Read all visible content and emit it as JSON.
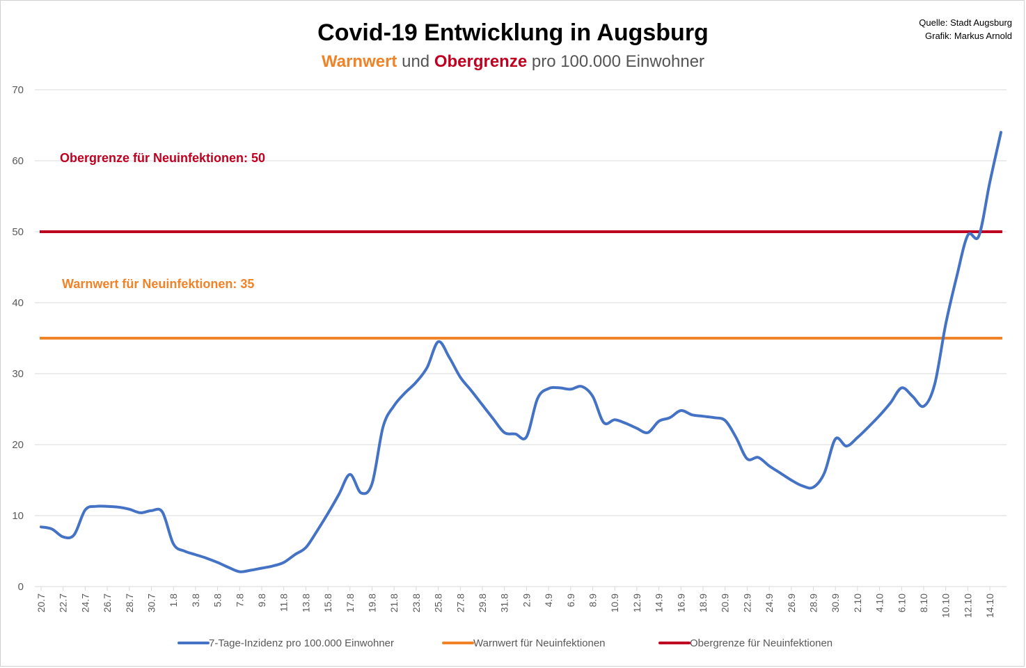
{
  "chart_data": {
    "type": "line",
    "title": "Covid-19 Entwicklung in Augsburg",
    "subtitle": {
      "warn": "Warnwert",
      "und": " und ",
      "ober": "Obergrenze",
      "rest": " pro 100.000 Einwohner"
    },
    "source": [
      "Quelle: Stadt Augsburg",
      "Grafik: Markus Arnold"
    ],
    "ylim": [
      0,
      70
    ],
    "yticks": [
      0,
      10,
      20,
      30,
      40,
      50,
      60,
      70
    ],
    "grid": true,
    "legend_position": "bottom",
    "x_tick_labels": [
      "20.7",
      "22.7",
      "24.7",
      "26.7",
      "28.7",
      "30.7",
      "1.8",
      "3.8",
      "5.8",
      "7.8",
      "9.8",
      "11.8",
      "13.8",
      "15.8",
      "17.8",
      "19.8",
      "21.8",
      "23.8",
      "25.8",
      "27.8",
      "29.8",
      "31.8",
      "2.9",
      "4.9",
      "6.9",
      "8.9",
      "10.9",
      "12.9",
      "14.9",
      "16.9",
      "18.9",
      "20.9",
      "22.9",
      "24.9",
      "26.9",
      "28.9",
      "30.9",
      "2.10",
      "4.10",
      "6.10",
      "8.10",
      "10.10",
      "12.10",
      "14.10"
    ],
    "x": [
      "20.7",
      "21.7",
      "22.7",
      "23.7",
      "24.7",
      "25.7",
      "26.7",
      "27.7",
      "28.7",
      "29.7",
      "30.7",
      "31.7",
      "1.8",
      "2.8",
      "3.8",
      "4.8",
      "5.8",
      "6.8",
      "7.8",
      "8.8",
      "9.8",
      "10.8",
      "11.8",
      "12.8",
      "13.8",
      "14.8",
      "15.8",
      "16.8",
      "17.8",
      "18.8",
      "19.8",
      "20.8",
      "21.8",
      "22.8",
      "23.8",
      "24.8",
      "25.8",
      "26.8",
      "27.8",
      "28.8",
      "29.8",
      "30.8",
      "31.8",
      "1.9",
      "2.9",
      "3.9",
      "4.9",
      "5.9",
      "6.9",
      "7.9",
      "8.9",
      "9.9",
      "10.9",
      "11.9",
      "12.9",
      "13.9",
      "14.9",
      "15.9",
      "16.9",
      "17.9",
      "18.9",
      "19.9",
      "20.9",
      "21.9",
      "22.9",
      "23.9",
      "24.9",
      "25.9",
      "26.9",
      "27.9",
      "28.9",
      "29.9",
      "30.9",
      "1.10",
      "2.10",
      "3.10",
      "4.10",
      "5.10",
      "6.10",
      "7.10",
      "8.10",
      "9.10",
      "10.10",
      "11.10",
      "12.10",
      "13.10",
      "14.10",
      "15.10"
    ],
    "series": [
      {
        "name": "7-Tage-Inzidenz pro 100.000 Einwohner",
        "color": "#4472c4",
        "values": [
          8.4,
          8.1,
          7.0,
          7.3,
          10.8,
          11.3,
          11.3,
          11.2,
          10.9,
          10.4,
          10.7,
          10.5,
          6.0,
          5.0,
          4.5,
          4.0,
          3.4,
          2.7,
          2.1,
          2.3,
          2.6,
          2.9,
          3.4,
          4.5,
          5.5,
          7.8,
          10.3,
          13.0,
          15.8,
          13.2,
          14.5,
          22.5,
          25.5,
          27.3,
          28.8,
          30.9,
          34.5,
          32.3,
          29.5,
          27.6,
          25.6,
          23.6,
          21.7,
          21.5,
          21.1,
          26.5,
          27.9,
          28.0,
          27.8,
          28.2,
          26.8,
          23.1,
          23.5,
          23.0,
          22.3,
          21.7,
          23.3,
          23.8,
          24.8,
          24.2,
          24.0,
          23.8,
          23.4,
          21.0,
          18.0,
          18.2,
          17.0,
          16.0,
          15.0,
          14.2,
          14.0,
          16.0,
          20.8,
          19.8,
          21.0,
          22.5,
          24.1,
          25.9,
          28.0,
          26.8,
          25.4,
          28.5,
          37.0,
          43.7,
          49.5,
          49.4,
          57.0,
          64.0
        ]
      },
      {
        "name": "Warnwert für Neuinfektionen",
        "color": "#f08228",
        "constant": 35
      },
      {
        "name": "Obergrenze für Neuinfektionen",
        "color": "#c00020",
        "constant": 50
      }
    ],
    "annotations": {
      "obergrenze": "Obergrenze für Neuinfektionen: 50",
      "warnwert": "Warnwert für Neuinfektionen: 35"
    }
  }
}
